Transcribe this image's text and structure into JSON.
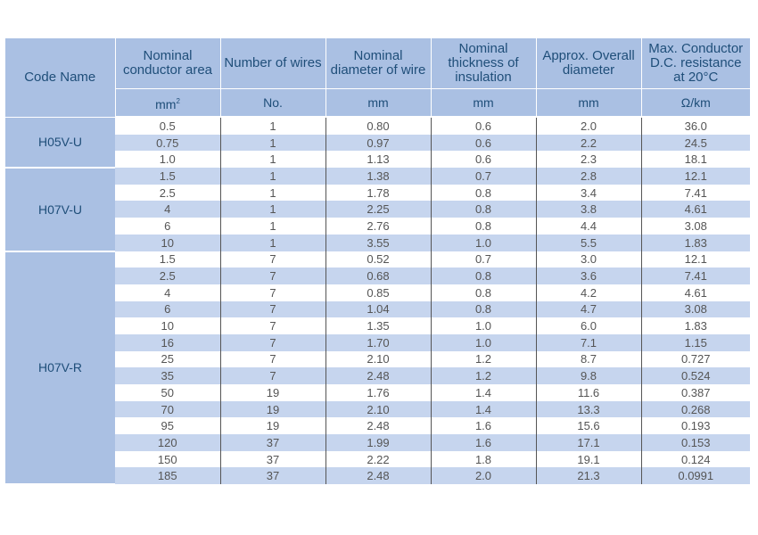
{
  "headers": {
    "code_name": "Code Name",
    "conductor_area": "Nominal conductor area",
    "wires": "Number of wires",
    "diameter_wire": "Nominal diameter of wire",
    "thickness": "Nominal thickness of insulation",
    "overall_diameter": "Approx. Overall diameter",
    "resistance": "Max. Conductor D.C. resistance at 20°C"
  },
  "units": {
    "conductor_area": "mm",
    "conductor_area_sup": "2",
    "wires": "No.",
    "diameter_wire": "mm",
    "thickness": "mm",
    "overall_diameter": "mm",
    "resistance": "Ω/km"
  },
  "groups": [
    {
      "code": "H05V-U",
      "rows": [
        [
          "0.5",
          "1",
          "0.80",
          "0.6",
          "2.0",
          "36.0"
        ],
        [
          "0.75",
          "1",
          "0.97",
          "0.6",
          "2.2",
          "24.5"
        ],
        [
          "1.0",
          "1",
          "1.13",
          "0.6",
          "2.3",
          "18.1"
        ]
      ]
    },
    {
      "code": "H07V-U",
      "rows": [
        [
          "1.5",
          "1",
          "1.38",
          "0.7",
          "2.8",
          "12.1"
        ],
        [
          "2.5",
          "1",
          "1.78",
          "0.8",
          "3.4",
          "7.41"
        ],
        [
          "4",
          "1",
          "2.25",
          "0.8",
          "3.8",
          "4.61"
        ],
        [
          "6",
          "1",
          "2.76",
          "0.8",
          "4.4",
          "3.08"
        ],
        [
          "10",
          "1",
          "3.55",
          "1.0",
          "5.5",
          "1.83"
        ]
      ]
    },
    {
      "code": "H07V-R",
      "rows": [
        [
          "1.5",
          "7",
          "0.52",
          "0.7",
          "3.0",
          "12.1"
        ],
        [
          "2.5",
          "7",
          "0.68",
          "0.8",
          "3.6",
          "7.41"
        ],
        [
          "4",
          "7",
          "0.85",
          "0.8",
          "4.2",
          "4.61"
        ],
        [
          "6",
          "7",
          "1.04",
          "0.8",
          "4.7",
          "3.08"
        ],
        [
          "10",
          "7",
          "1.35",
          "1.0",
          "6.0",
          "1.83"
        ],
        [
          "16",
          "7",
          "1.70",
          "1.0",
          "7.1",
          "1.15"
        ],
        [
          "25",
          "7",
          "2.10",
          "1.2",
          "8.7",
          "0.727"
        ],
        [
          "35",
          "7",
          "2.48",
          "1.2",
          "9.8",
          "0.524"
        ],
        [
          "50",
          "19",
          "1.76",
          "1.4",
          "11.6",
          "0.387"
        ],
        [
          "70",
          "19",
          "2.10",
          "1.4",
          "13.3",
          "0.268"
        ],
        [
          "95",
          "19",
          "2.48",
          "1.6",
          "15.6",
          "0.193"
        ],
        [
          "120",
          "37",
          "1.99",
          "1.6",
          "17.1",
          "0.153"
        ],
        [
          "150",
          "37",
          "2.22",
          "1.8",
          "19.1",
          "0.124"
        ],
        [
          "185",
          "37",
          "2.48",
          "2.0",
          "21.3",
          "0.0991"
        ]
      ]
    }
  ]
}
